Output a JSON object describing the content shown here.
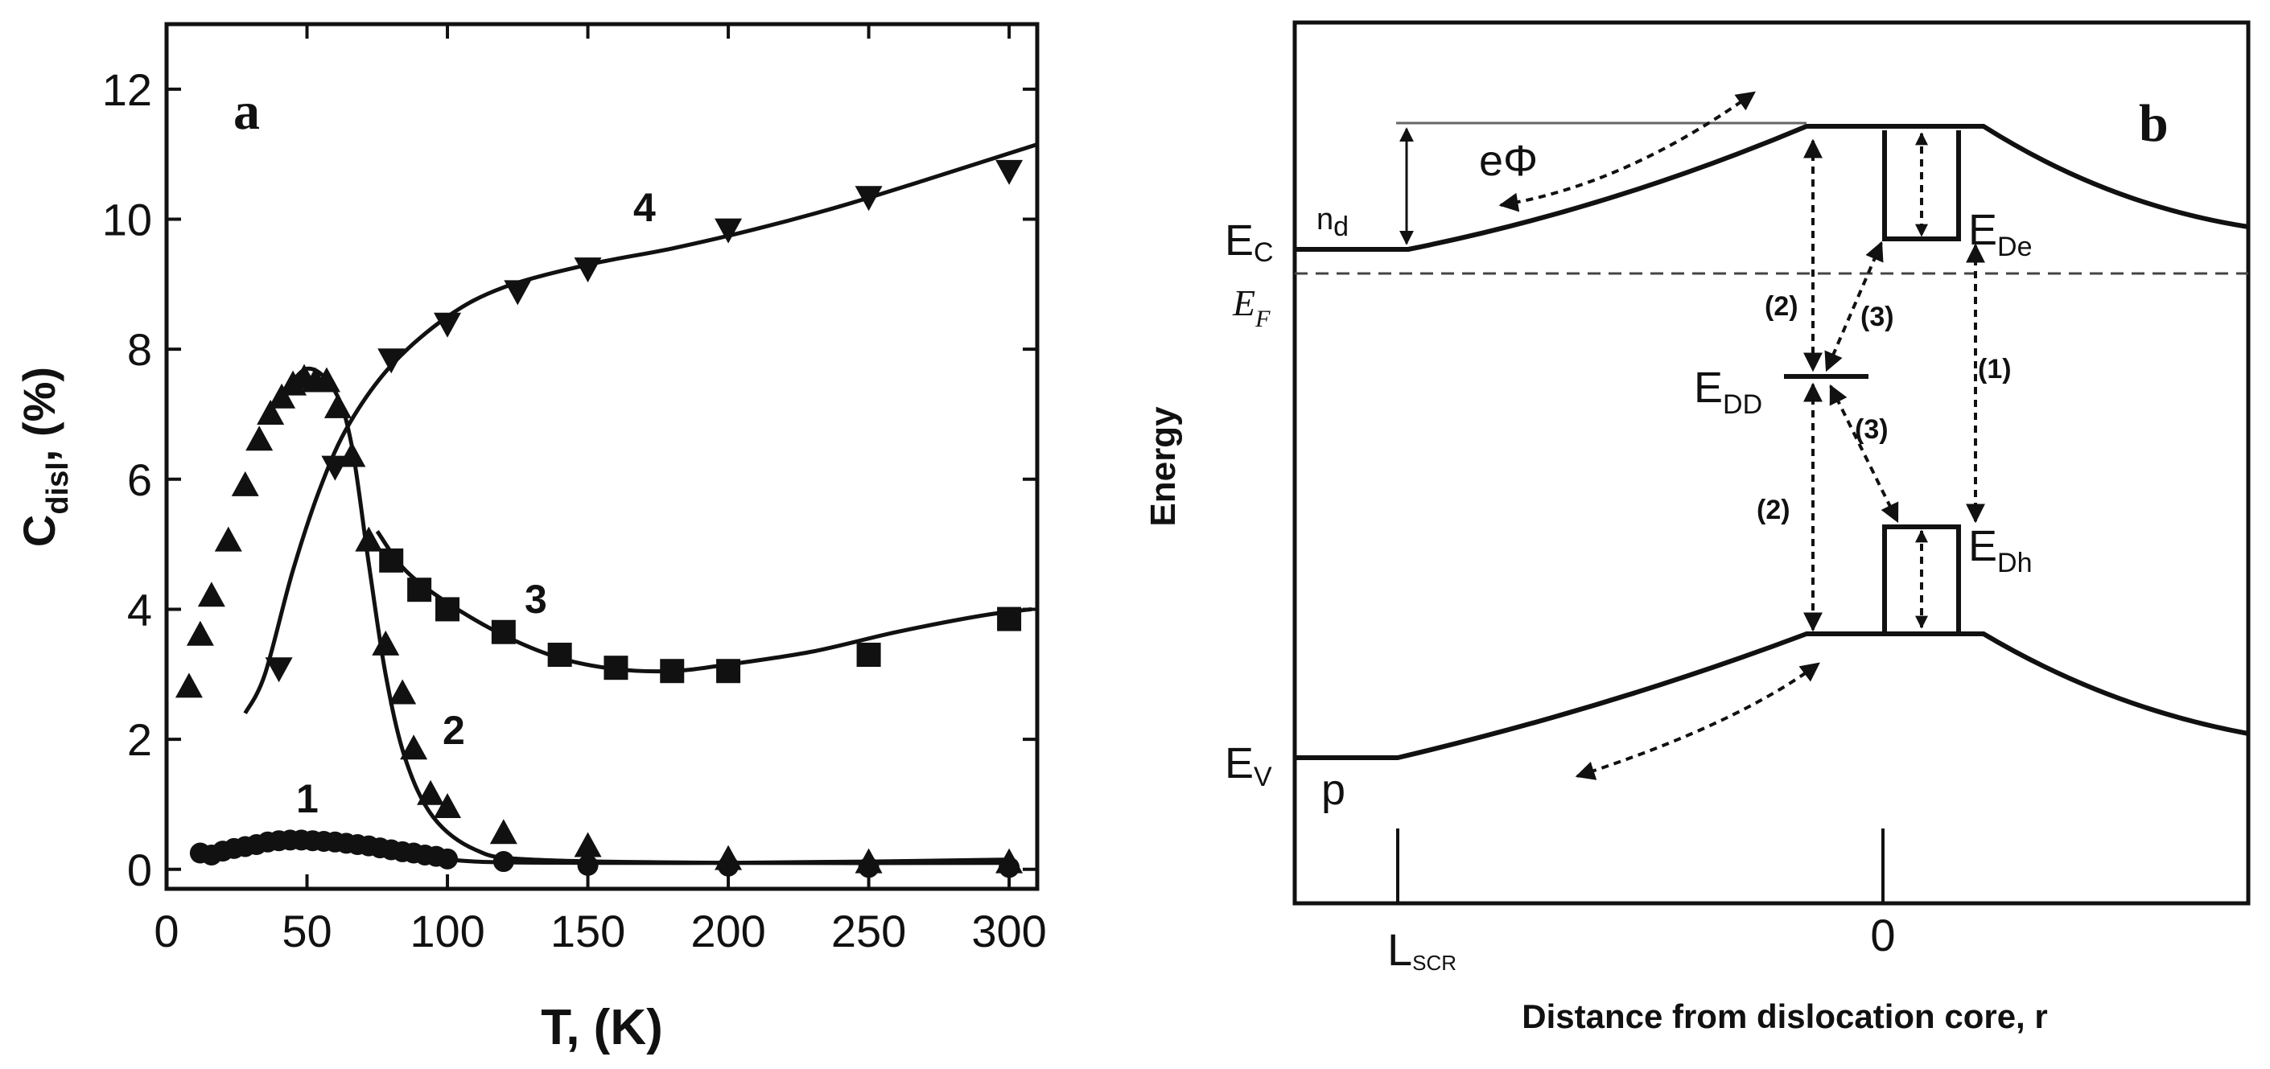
{
  "chart_data": [
    {
      "type": "scatter",
      "panel_label": "a",
      "xlabel": "T, (K)",
      "ylabel_main": "C",
      "ylabel_sub": "disl",
      "ylabel_suffix": ", (%)",
      "xlim": [
        0,
        310
      ],
      "ylim": [
        -0.3,
        13
      ],
      "xticks": [
        0,
        50,
        100,
        150,
        200,
        250,
        300
      ],
      "yticks": [
        0,
        2,
        4,
        6,
        8,
        10,
        12
      ],
      "series": [
        {
          "name": "1",
          "marker": "circle",
          "points": [
            [
              12,
              0.25
            ],
            [
              16,
              0.22
            ],
            [
              20,
              0.28
            ],
            [
              24,
              0.32
            ],
            [
              28,
              0.35
            ],
            [
              32,
              0.38
            ],
            [
              36,
              0.42
            ],
            [
              40,
              0.44
            ],
            [
              44,
              0.45
            ],
            [
              48,
              0.45
            ],
            [
              52,
              0.44
            ],
            [
              56,
              0.43
            ],
            [
              60,
              0.42
            ],
            [
              64,
              0.4
            ],
            [
              68,
              0.38
            ],
            [
              72,
              0.36
            ],
            [
              76,
              0.33
            ],
            [
              80,
              0.3
            ],
            [
              84,
              0.27
            ],
            [
              88,
              0.25
            ],
            [
              92,
              0.22
            ],
            [
              96,
              0.2
            ],
            [
              100,
              0.16
            ],
            [
              120,
              0.12
            ],
            [
              150,
              0.06
            ],
            [
              200,
              0.05
            ],
            [
              250,
              0.03
            ],
            [
              300,
              0.03
            ]
          ],
          "fit": [
            [
              12,
              0.2
            ],
            [
              30,
              0.32
            ],
            [
              50,
              0.4
            ],
            [
              70,
              0.35
            ],
            [
              90,
              0.22
            ],
            [
              110,
              0.12
            ],
            [
              150,
              0.1
            ],
            [
              200,
              0.1
            ],
            [
              250,
              0.12
            ],
            [
              300,
              0.15
            ]
          ]
        },
        {
          "name": "2",
          "marker": "triangle-up",
          "points": [
            [
              8,
              2.8
            ],
            [
              12,
              3.6
            ],
            [
              16,
              4.2
            ],
            [
              22,
              5.05
            ],
            [
              28,
              5.9
            ],
            [
              33,
              6.6
            ],
            [
              37,
              7.0
            ],
            [
              41,
              7.25
            ],
            [
              45,
              7.45
            ],
            [
              49,
              7.55
            ],
            [
              53,
              7.5
            ],
            [
              57,
              7.5
            ],
            [
              61,
              7.1
            ],
            [
              66,
              6.35
            ],
            [
              72,
              5.05
            ],
            [
              78,
              3.45
            ],
            [
              84,
              2.7
            ],
            [
              88,
              1.85
            ],
            [
              94,
              1.15
            ],
            [
              100,
              0.95
            ],
            [
              120,
              0.55
            ],
            [
              150,
              0.35
            ],
            [
              200,
              0.15
            ],
            [
              250,
              0.1
            ],
            [
              300,
              0.1
            ]
          ],
          "fit": [
            [
              40,
              7.2
            ],
            [
              50,
              7.7
            ],
            [
              60,
              7.35
            ],
            [
              66,
              6.5
            ],
            [
              72,
              4.7
            ],
            [
              78,
              3.0
            ],
            [
              85,
              1.7
            ],
            [
              95,
              0.8
            ],
            [
              110,
              0.3
            ],
            [
              130,
              0.15
            ],
            [
              200,
              0.1
            ],
            [
              300,
              0.1
            ]
          ]
        },
        {
          "name": "3",
          "marker": "square",
          "points": [
            [
              80,
              4.75
            ],
            [
              90,
              4.3
            ],
            [
              100,
              4.0
            ],
            [
              120,
              3.65
            ],
            [
              140,
              3.3
            ],
            [
              160,
              3.1
            ],
            [
              180,
              3.05
            ],
            [
              200,
              3.05
            ],
            [
              250,
              3.3
            ],
            [
              300,
              3.85
            ]
          ],
          "fit": [
            [
              75,
              5.2
            ],
            [
              85,
              4.6
            ],
            [
              100,
              4.1
            ],
            [
              120,
              3.6
            ],
            [
              140,
              3.25
            ],
            [
              160,
              3.08
            ],
            [
              180,
              3.05
            ],
            [
              200,
              3.15
            ],
            [
              230,
              3.35
            ],
            [
              260,
              3.65
            ],
            [
              290,
              3.9
            ],
            [
              308,
              4.0
            ]
          ]
        },
        {
          "name": "4",
          "marker": "triangle-down",
          "points": [
            [
              40,
              3.1
            ],
            [
              60,
              6.2
            ],
            [
              80,
              7.85
            ],
            [
              100,
              8.4
            ],
            [
              125,
              8.9
            ],
            [
              150,
              9.25
            ],
            [
              200,
              9.85
            ],
            [
              250,
              10.35
            ],
            [
              300,
              10.75
            ]
          ],
          "fit": [
            [
              28,
              2.4
            ],
            [
              35,
              3.0
            ],
            [
              45,
              4.6
            ],
            [
              55,
              5.9
            ],
            [
              65,
              6.85
            ],
            [
              80,
              7.75
            ],
            [
              100,
              8.5
            ],
            [
              120,
              8.95
            ],
            [
              150,
              9.3
            ],
            [
              180,
              9.55
            ],
            [
              210,
              9.85
            ],
            [
              240,
              10.2
            ],
            [
              270,
              10.6
            ],
            [
              310,
              11.15
            ]
          ]
        }
      ]
    },
    {
      "type": "diagram",
      "panel_label": "b",
      "xlabel": "Distance from dislocation core, r",
      "ylabel": "Energy",
      "xtick_labels": [
        {
          "main": "L",
          "sub": "SCR"
        },
        {
          "main": "0",
          "sub": ""
        }
      ],
      "labels": {
        "Ec": {
          "main": "E",
          "sub": "C"
        },
        "Ef": {
          "main": "E",
          "sub": "F"
        },
        "Ev": {
          "main": "E",
          "sub": "V"
        },
        "Ede": {
          "main": "E",
          "sub": "De"
        },
        "Edh": {
          "main": "E",
          "sub": "Dh"
        },
        "Edd": {
          "main": "E",
          "sub": "DD"
        },
        "nd": {
          "main": "n",
          "sub": "d"
        },
        "p": "p",
        "ephi": "eΦ",
        "t1": "(1)",
        "t2a": "(2)",
        "t2b": "(2)",
        "t3a": "(3)",
        "t3b": "(3)"
      }
    }
  ]
}
